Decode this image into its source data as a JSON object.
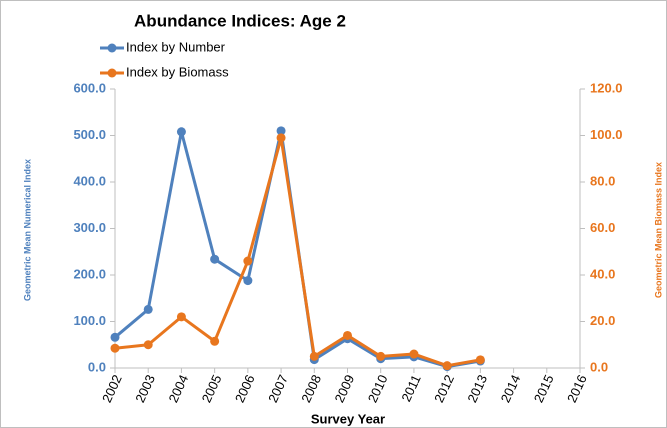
{
  "chart_data": {
    "type": "line",
    "title": "Abundance Indices:  Age 2",
    "x_label": "Survey Year",
    "y_label": "Geometric Mean Numerical Index",
    "y2_label": "Geometric Mean Biomass Index",
    "categories": [
      "2002",
      "2003",
      "2004",
      "2005",
      "2006",
      "2007",
      "2008",
      "2009",
      "2010",
      "2011",
      "2012",
      "2013",
      "2014",
      "2015",
      "2016"
    ],
    "series": [
      {
        "name": "Index by Number",
        "color": "#4f81bd",
        "axis": "y",
        "values": [
          66,
          126,
          508,
          234,
          188,
          510,
          18,
          63,
          20,
          24,
          3,
          15,
          null,
          null,
          null
        ]
      },
      {
        "name": "Index by Biomass",
        "color": "#e8761e",
        "axis": "y2",
        "values": [
          8.5,
          10,
          22,
          11.5,
          46,
          99,
          5,
          14,
          5,
          6,
          1,
          3.5,
          null,
          null,
          null
        ]
      }
    ],
    "ylim": [
      0,
      600
    ],
    "yticks": [
      {
        "value": 0,
        "label": "0.0"
      },
      {
        "value": 100,
        "label": "100.0"
      },
      {
        "value": 200,
        "label": "200.0"
      },
      {
        "value": 300,
        "label": "300.0"
      },
      {
        "value": 400,
        "label": "400.0"
      },
      {
        "value": 500,
        "label": "500.0"
      },
      {
        "value": 600,
        "label": "600.0"
      }
    ],
    "y2lim": [
      0,
      120
    ],
    "y2ticks": [
      {
        "value": 0,
        "label": "0.0"
      },
      {
        "value": 20,
        "label": "20.0"
      },
      {
        "value": 40,
        "label": "40.0"
      },
      {
        "value": 60,
        "label": "60.0"
      },
      {
        "value": 80,
        "label": "80.0"
      },
      {
        "value": 100,
        "label": "100.0"
      },
      {
        "value": 120,
        "label": "120.0"
      }
    ],
    "legend": "top-left"
  }
}
